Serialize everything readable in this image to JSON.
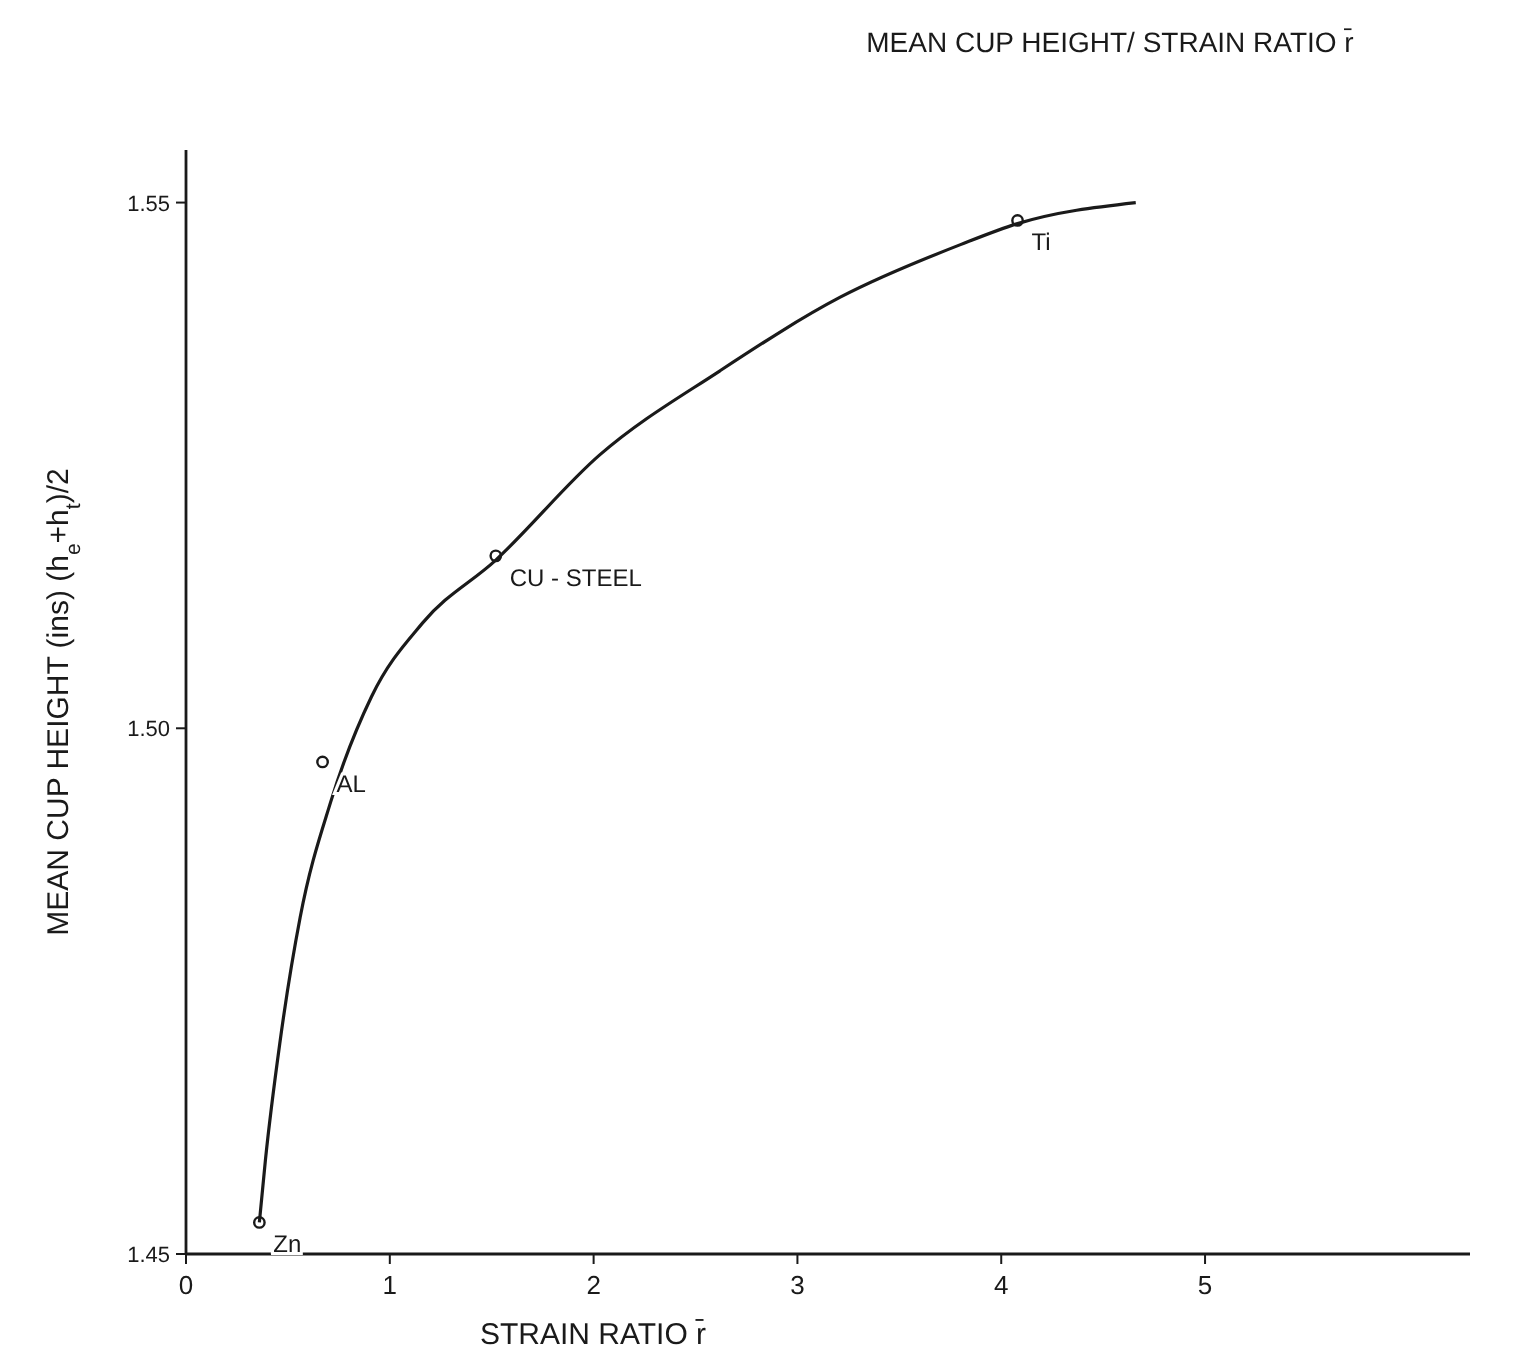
{
  "chart_data": {
    "type": "line",
    "title": "MEAN  CUP HEIGHT/ STRAIN RATIO r̄",
    "xlabel": "STRAIN  RATIO  r̄",
    "ylabel": "MEAN  CUP  HEIGHT  (ins)  (h$_{e}$+h$_{t}$)/2",
    "xlim": [
      0,
      6.3
    ],
    "ylim": [
      1.45,
      1.555
    ],
    "xticks": [
      0,
      1,
      2,
      3,
      4,
      5
    ],
    "yticks": [
      {
        "value": 1.45,
        "label": "1.45"
      },
      {
        "value": 1.5,
        "label": "1.50"
      },
      {
        "value": 1.55,
        "label": "1.55"
      }
    ],
    "grid": false,
    "marker": "none",
    "line_style": "solid",
    "series": [
      {
        "color": "#1a1a1a",
        "x": [
          0.36,
          0.39,
          0.46,
          0.56,
          0.71,
          0.91,
          1.16,
          1.52,
          2.03,
          2.62,
          3.21,
          3.8,
          4.08,
          4.66
        ],
        "values": [
          1.453,
          1.459,
          1.47,
          1.482,
          1.493,
          1.503,
          1.51,
          1.516,
          1.526,
          1.534,
          1.541,
          1.546,
          1.548,
          1.55
        ]
      },
      {
        "type": "scatter",
        "color": "#1a1a1a",
        "marker": "circle",
        "x": [
          0.36,
          0.67,
          1.52,
          4.08
        ],
        "values": [
          1.453,
          1.4968,
          1.5164,
          1.5483
        ]
      }
    ],
    "annotations": [
      {
        "text": "Zn",
        "x": 0.36,
        "y": 1.453
      },
      {
        "text": "AL",
        "x": 0.67,
        "y": 1.4968
      },
      {
        "text": "CU - STEEL",
        "x": 1.52,
        "y": 1.5164
      },
      {
        "text": "Ti",
        "x": 4.08,
        "y": 1.5483
      }
    ]
  }
}
